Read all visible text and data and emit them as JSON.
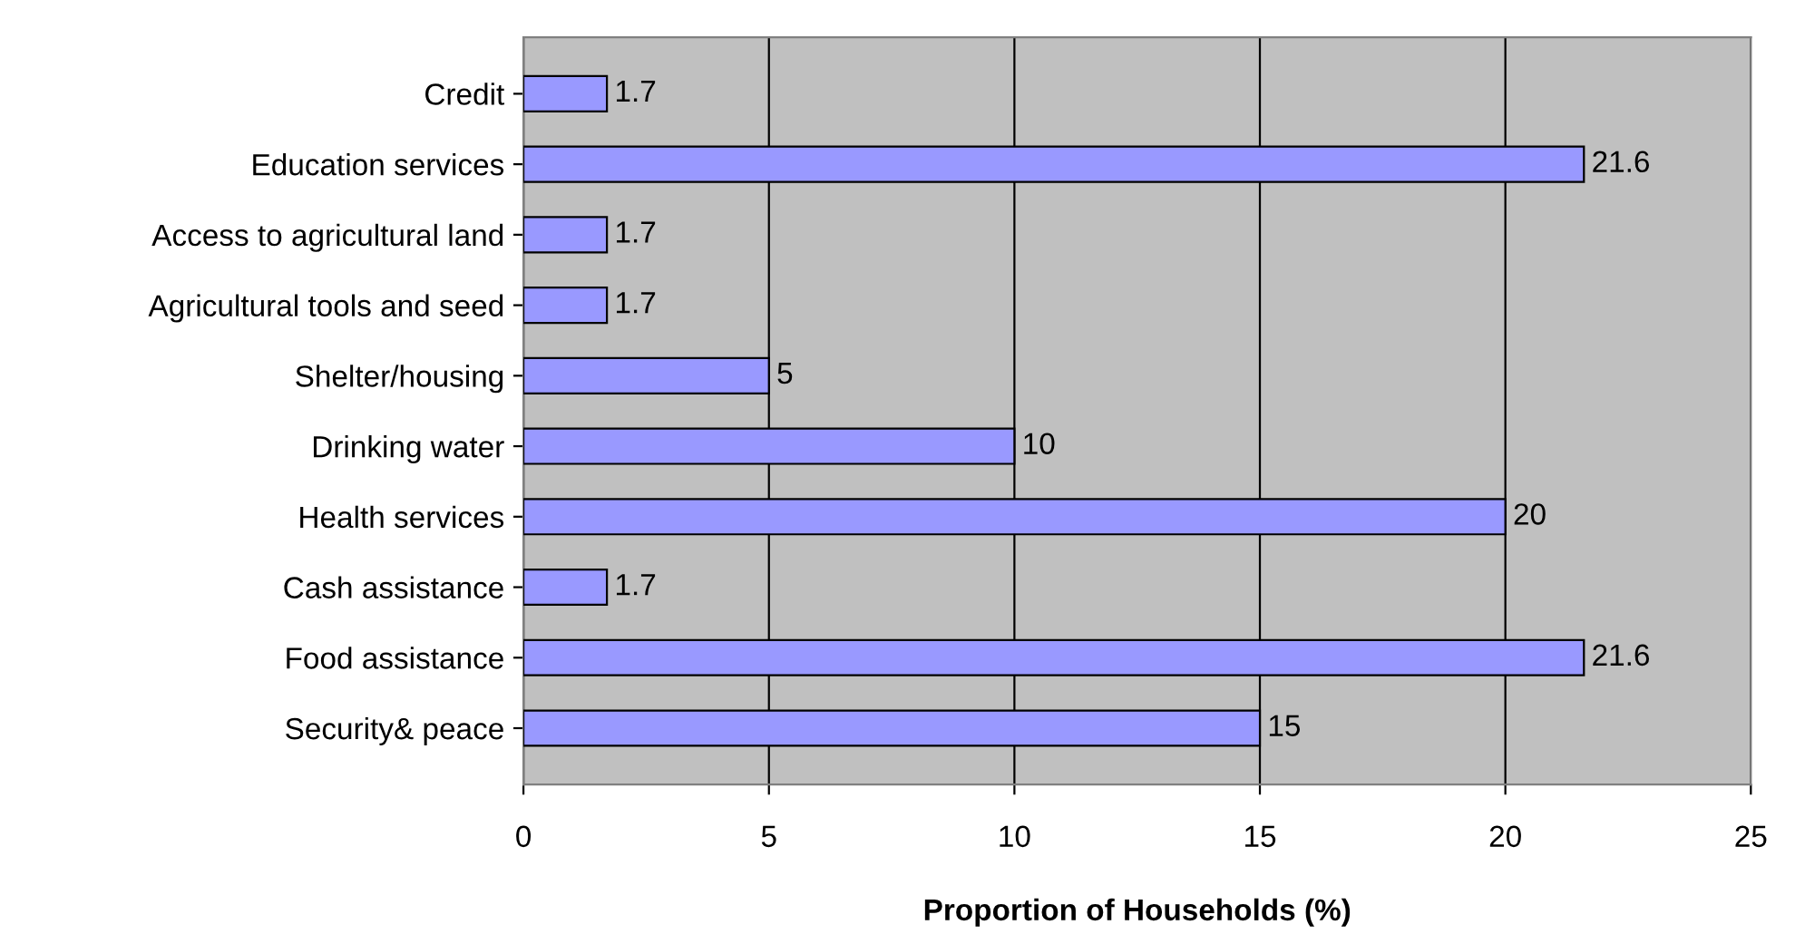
{
  "chart_data": {
    "type": "bar",
    "orientation": "horizontal",
    "xlabel": "Proportion of Households (%)",
    "categories": [
      "Credit",
      "Education services",
      "Access to agricultural land",
      "Agricultural tools and seed",
      "Shelter/housing",
      "Drinking water",
      "Health services",
      "Cash assistance",
      "Food assistance",
      "Security& peace"
    ],
    "values": [
      1.7,
      21.6,
      1.7,
      1.7,
      5,
      10,
      20,
      1.7,
      21.6,
      15
    ],
    "color": "#9999ff",
    "xlim": [
      0,
      25
    ],
    "xticks": [
      0,
      5,
      10,
      15,
      20,
      25
    ],
    "grid": "x",
    "data_labels": true
  }
}
